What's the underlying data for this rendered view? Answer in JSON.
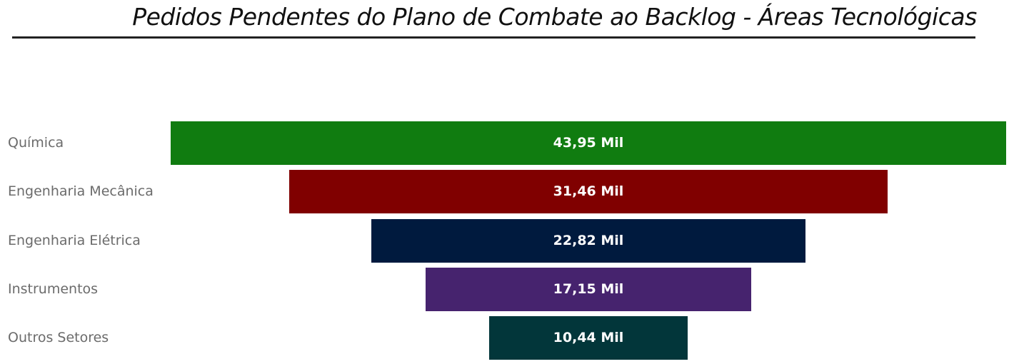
{
  "chart_data": {
    "type": "funnel",
    "title": "Pedidos Pendentes do Plano de Combate ao Backlog - Áreas Tecnológicas",
    "categories": [
      "Química",
      "Engenharia Mecânica",
      "Engenharia Elétrica",
      "Instrumentos",
      "Outros Setores"
    ],
    "values": [
      43950,
      31460,
      22820,
      17150,
      10440
    ],
    "data_labels": [
      "43,95 Mil",
      "31,46 Mil",
      "22,82 Mil",
      "17,15 Mil",
      "10,44 Mil"
    ],
    "colors": [
      "#107C10",
      "#800000",
      "#001A3E",
      "#46236E",
      "#02363A"
    ]
  }
}
